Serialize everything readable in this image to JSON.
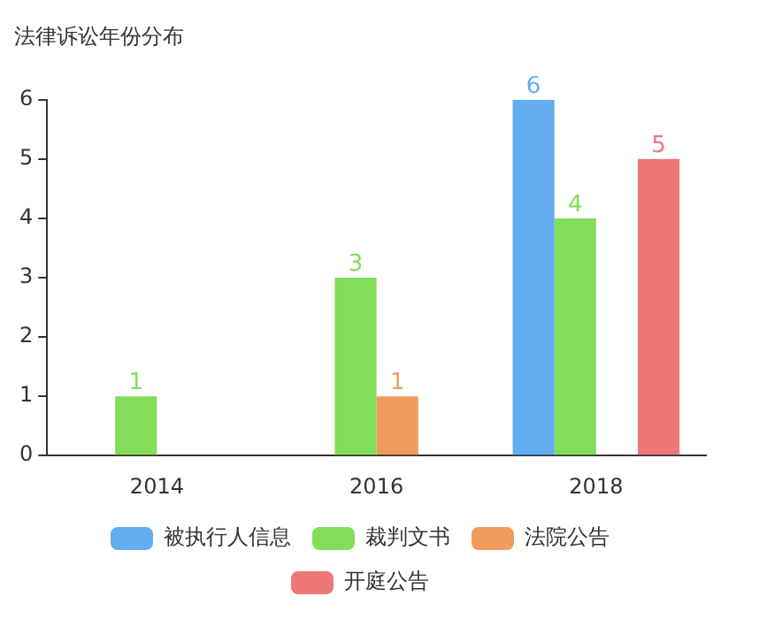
{
  "chart_data": {
    "type": "bar",
    "title": "法律诉讼年份分布",
    "categories": [
      "2014",
      "2016",
      "2018"
    ],
    "series": [
      {
        "name": "被执行人信息",
        "color": "#62aef0",
        "values": [
          null,
          null,
          6
        ]
      },
      {
        "name": "裁判文书",
        "color": "#84dd58",
        "values": [
          1,
          3,
          4
        ]
      },
      {
        "name": "法院公告",
        "color": "#f09c5f",
        "values": [
          null,
          1,
          null
        ]
      },
      {
        "name": "开庭公告",
        "color": "#ee7777",
        "values": [
          null,
          null,
          5
        ]
      }
    ],
    "ylim": [
      0,
      6
    ],
    "yticks": [
      0,
      1,
      2,
      3,
      4,
      5,
      6
    ],
    "grid": false,
    "legend": "bottom",
    "data_labels": true
  }
}
